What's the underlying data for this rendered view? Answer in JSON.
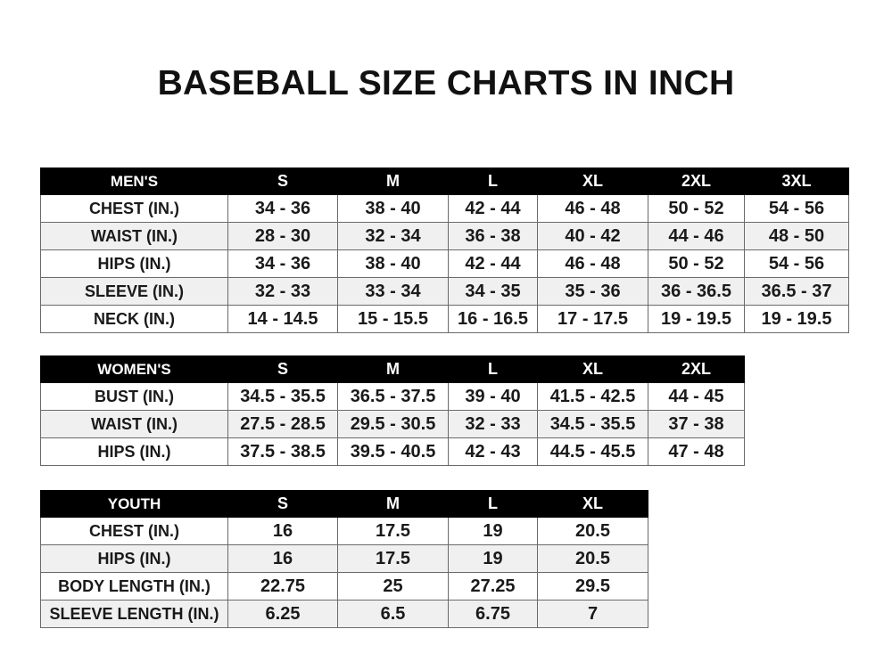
{
  "title": "BASEBALL SIZE CHARTS IN INCH",
  "men": {
    "header": "MEN'S",
    "sizes": [
      "S",
      "M",
      "L",
      "XL",
      "2XL",
      "3XL"
    ],
    "rows": [
      {
        "label": "CHEST (IN.)",
        "values": [
          "34 - 36",
          "38 - 40",
          "42 - 44",
          "46 - 48",
          "50 - 52",
          "54 - 56"
        ]
      },
      {
        "label": "WAIST (IN.)",
        "values": [
          "28 - 30",
          "32 - 34",
          "36 - 38",
          "40 - 42",
          "44 - 46",
          "48 - 50"
        ]
      },
      {
        "label": "HIPS (IN.)",
        "values": [
          "34 - 36",
          "38 - 40",
          "42 - 44",
          "46 - 48",
          "50 - 52",
          "54 - 56"
        ]
      },
      {
        "label": "SLEEVE (IN.)",
        "values": [
          "32 - 33",
          "33 - 34",
          "34 - 35",
          "35 - 36",
          "36 - 36.5",
          "36.5 - 37"
        ]
      },
      {
        "label": "NECK (IN.)",
        "values": [
          "14 - 14.5",
          "15 - 15.5",
          "16 - 16.5",
          "17 - 17.5",
          "19 - 19.5",
          "19 - 19.5"
        ]
      }
    ]
  },
  "women": {
    "header": "WOMEN'S",
    "sizes": [
      "S",
      "M",
      "L",
      "XL",
      "2XL"
    ],
    "rows": [
      {
        "label": "BUST (IN.)",
        "values": [
          "34.5 - 35.5",
          "36.5 - 37.5",
          "39 - 40",
          "41.5 - 42.5",
          "44 - 45"
        ]
      },
      {
        "label": "WAIST (IN.)",
        "values": [
          "27.5 - 28.5",
          "29.5 - 30.5",
          "32 - 33",
          "34.5 - 35.5",
          "37 - 38"
        ]
      },
      {
        "label": "HIPS (IN.)",
        "values": [
          "37.5 - 38.5",
          "39.5 - 40.5",
          "42 - 43",
          "44.5 - 45.5",
          "47 - 48"
        ]
      }
    ]
  },
  "youth": {
    "header": "YOUTH",
    "sizes": [
      "S",
      "M",
      "L",
      "XL"
    ],
    "rows": [
      {
        "label": "CHEST (IN.)",
        "values": [
          "16",
          "17.5",
          "19",
          "20.5"
        ]
      },
      {
        "label": "HIPS (IN.)",
        "values": [
          "16",
          "17.5",
          "19",
          "20.5"
        ]
      },
      {
        "label": "BODY LENGTH (IN.)",
        "values": [
          "22.75",
          "25",
          "27.25",
          "29.5"
        ]
      },
      {
        "label": "SLEEVE LENGTH (IN.)",
        "values": [
          "6.25",
          "6.5",
          "6.75",
          "7"
        ]
      }
    ]
  }
}
